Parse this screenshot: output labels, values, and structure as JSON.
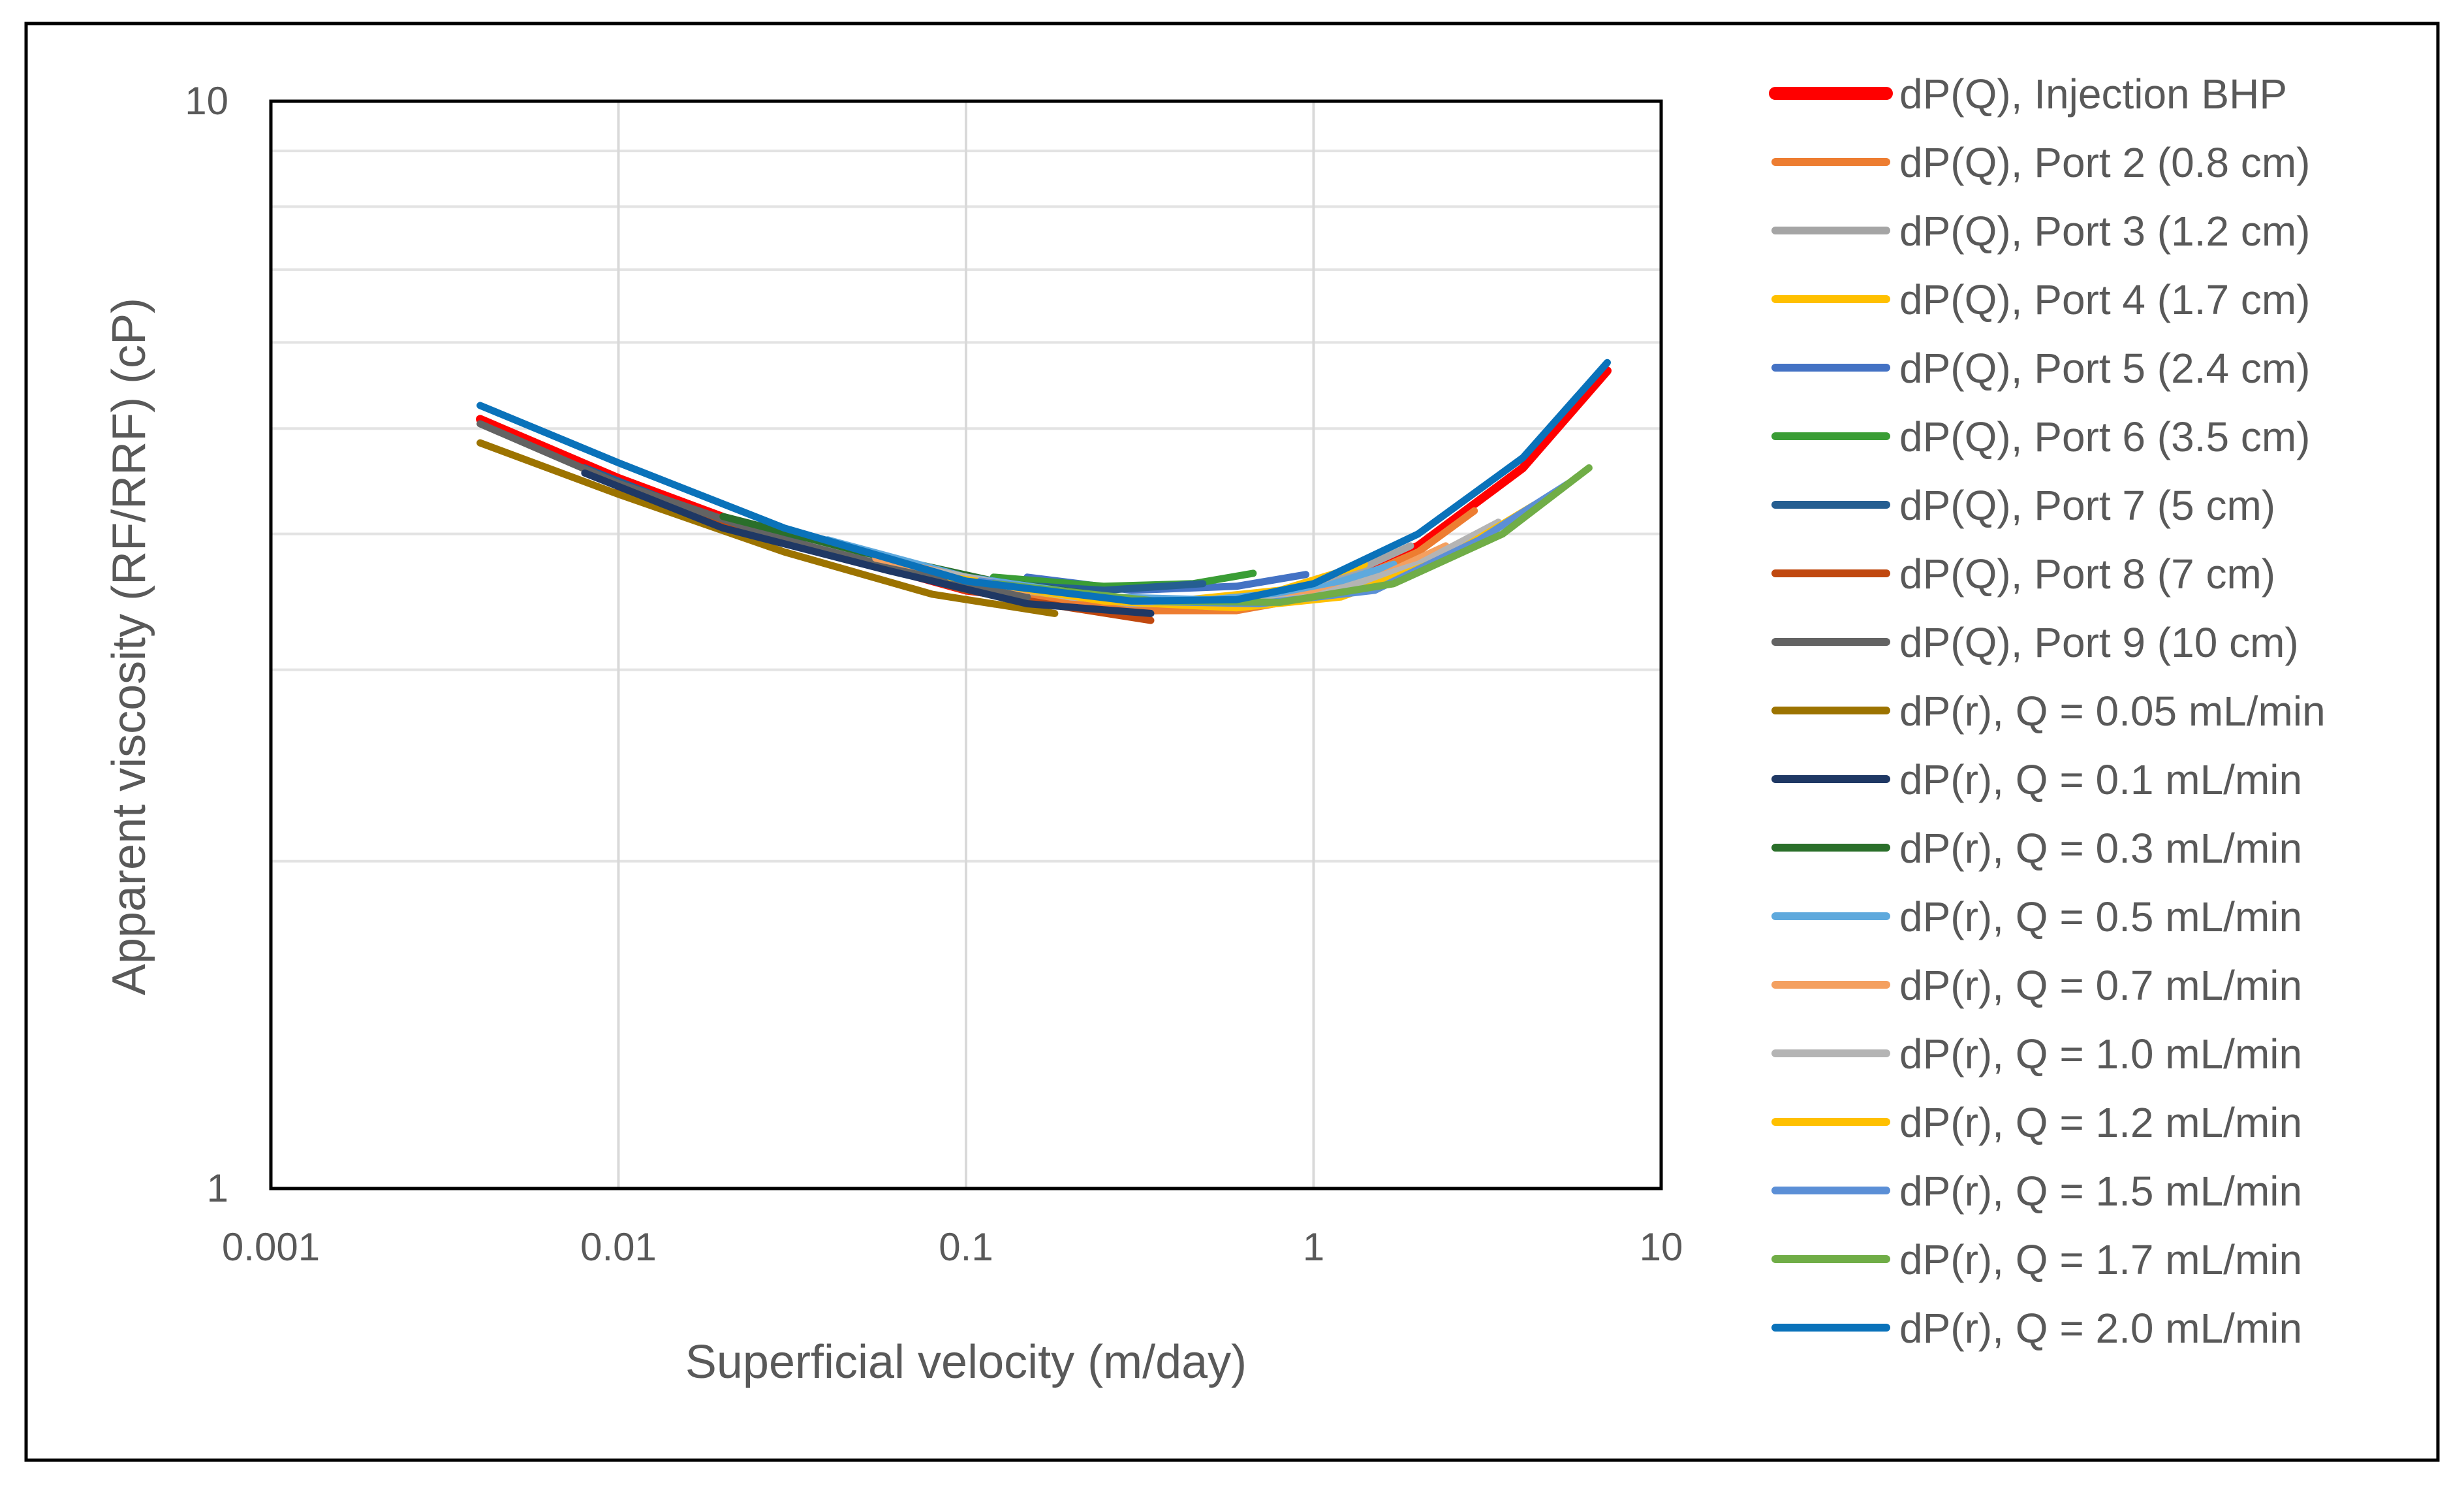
{
  "chart_data": {
    "type": "line",
    "title": "",
    "xlabel": "Superficial velocity (m/day)",
    "ylabel": "Apparent viscosity (RF/RRF) (cP)",
    "xscale": "log",
    "yscale": "log",
    "xlim": [
      0.001,
      10
    ],
    "ylim": [
      1,
      10
    ],
    "grid": true,
    "legend_position": "right",
    "x_ticks": [
      {
        "value": 0.001,
        "label": "0.001"
      },
      {
        "value": 0.01,
        "label": "0.01"
      },
      {
        "value": 0.1,
        "label": "0.1"
      },
      {
        "value": 1,
        "label": "1"
      },
      {
        "value": 10,
        "label": "10"
      }
    ],
    "y_ticks": [
      {
        "value": 1,
        "label": "1"
      },
      {
        "value": 10,
        "label": "10"
      }
    ],
    "series": [
      {
        "name": "dP(Q), Injection BHP",
        "color": "#ff0000",
        "emphasis": true,
        "x": [
          0.004,
          0.01,
          0.03,
          0.1,
          0.3,
          0.6,
          1,
          2,
          4,
          7
        ],
        "y": [
          5.1,
          4.5,
          3.95,
          3.55,
          3.4,
          3.42,
          3.55,
          3.9,
          4.6,
          5.65
        ]
      },
      {
        "name": "dP(Q), Port 2 (0.8 cm)",
        "color": "#ed7d31",
        "x": [
          0.15,
          0.3,
          0.6,
          1,
          2,
          2.9
        ],
        "y": [
          3.52,
          3.4,
          3.4,
          3.5,
          3.85,
          4.2
        ]
      },
      {
        "name": "dP(Q), Port 3 (1.2 cm)",
        "color": "#a5a5a5",
        "x": [
          0.06,
          0.1,
          0.3,
          0.6,
          1,
          1.9
        ],
        "y": [
          3.72,
          3.6,
          3.45,
          3.45,
          3.55,
          3.9
        ]
      },
      {
        "name": "dP(Q), Port 4 (1.7 cm)",
        "color": "#ffc000",
        "x": [
          0.1,
          0.2,
          0.4,
          0.8,
          1.4
        ],
        "y": [
          3.62,
          3.5,
          3.47,
          3.55,
          3.75
        ]
      },
      {
        "name": "dP(Q), Port 5 (2.4 cm)",
        "color": "#4472c4",
        "x": [
          0.15,
          0.3,
          0.6,
          0.95
        ],
        "y": [
          3.65,
          3.55,
          3.58,
          3.67
        ]
      },
      {
        "name": "dP(Q), Port 6 (3.5 cm)",
        "color": "#3a9d35",
        "x": [
          0.12,
          0.25,
          0.45,
          0.67
        ],
        "y": [
          3.65,
          3.58,
          3.6,
          3.68
        ]
      },
      {
        "name": "dP(Q), Port 7 (5 cm)",
        "color": "#255e91",
        "x": [
          0.008,
          0.02,
          0.05,
          0.12,
          0.25,
          0.48
        ],
        "y": [
          4.6,
          4.1,
          3.78,
          3.6,
          3.55,
          3.6
        ]
      },
      {
        "name": "dP(Q), Port 8 (7 cm)",
        "color": "#c0480f",
        "x": [
          0.01,
          0.03,
          0.1,
          0.2,
          0.34
        ],
        "y": [
          4.4,
          3.95,
          3.55,
          3.42,
          3.33
        ]
      },
      {
        "name": "dP(Q), Port 9 (10 cm)",
        "color": "#636363",
        "x": [
          0.004,
          0.01,
          0.03,
          0.08,
          0.15
        ],
        "y": [
          5.05,
          4.45,
          3.95,
          3.65,
          3.5
        ]
      },
      {
        "name": "dP(r), Q = 0.05 mL/min",
        "color": "#9c7300",
        "x": [
          0.004,
          0.01,
          0.03,
          0.08,
          0.18
        ],
        "y": [
          4.85,
          4.35,
          3.85,
          3.52,
          3.38
        ]
      },
      {
        "name": "dP(r), Q = 0.1 mL/min",
        "color": "#1f3864",
        "x": [
          0.008,
          0.02,
          0.06,
          0.15,
          0.34
        ],
        "y": [
          4.55,
          4.05,
          3.7,
          3.45,
          3.38
        ]
      },
      {
        "name": "dP(r), Q = 0.3 mL/min",
        "color": "#2a6f2a",
        "x": [
          0.02,
          0.05,
          0.12,
          0.3,
          0.6,
          1.0
        ],
        "y": [
          4.15,
          3.85,
          3.62,
          3.48,
          3.47,
          3.55
        ]
      },
      {
        "name": "dP(r), Q = 0.5 mL/min",
        "color": "#5ea9dd",
        "x": [
          0.04,
          0.1,
          0.25,
          0.5,
          1.0,
          1.7
        ],
        "y": [
          3.95,
          3.65,
          3.5,
          3.48,
          3.55,
          3.75
        ]
      },
      {
        "name": "dP(r), Q = 0.7 mL/min",
        "color": "#f4a060",
        "x": [
          0.055,
          0.15,
          0.35,
          0.7,
          1.4,
          2.4
        ],
        "y": [
          3.8,
          3.55,
          3.45,
          3.45,
          3.6,
          3.9
        ]
      },
      {
        "name": "dP(r), Q = 1.0 mL/min",
        "color": "#b4b4b4",
        "x": [
          0.08,
          0.2,
          0.5,
          1.0,
          2.0,
          3.4
        ],
        "y": [
          3.7,
          3.5,
          3.43,
          3.5,
          3.75,
          4.1
        ]
      },
      {
        "name": "dP(r), Q = 1.2 mL/min",
        "color": "#ffc000",
        "x": [
          0.09,
          0.25,
          0.6,
          1.2,
          2.4,
          4.3
        ],
        "y": [
          3.65,
          3.47,
          3.42,
          3.5,
          3.8,
          4.25
        ]
      },
      {
        "name": "dP(r), Q = 1.5 mL/min",
        "color": "#5b8fd6",
        "x": [
          0.11,
          0.3,
          0.7,
          1.5,
          3.0,
          5.4
        ],
        "y": [
          3.62,
          3.47,
          3.45,
          3.55,
          3.95,
          4.45
        ]
      },
      {
        "name": "dP(r), Q = 1.7 mL/min",
        "color": "#70ad47",
        "x": [
          0.12,
          0.35,
          0.8,
          1.7,
          3.5,
          6.2
        ],
        "y": [
          3.6,
          3.47,
          3.46,
          3.6,
          4.0,
          4.6
        ]
      },
      {
        "name": "dP(r), Q = 2.0 mL/min",
        "color": "#0a72ba",
        "x": [
          0.004,
          0.01,
          0.03,
          0.1,
          0.3,
          0.6,
          1.0,
          2.0,
          4.0,
          7.0
        ],
        "y": [
          5.25,
          4.65,
          4.05,
          3.62,
          3.47,
          3.48,
          3.6,
          4.0,
          4.7,
          5.75
        ]
      }
    ]
  }
}
